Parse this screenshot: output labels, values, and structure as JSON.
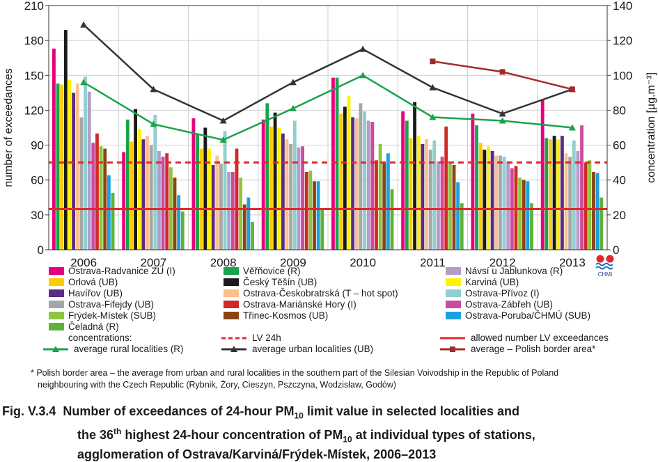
{
  "chart_data": {
    "type": "bar",
    "categories": [
      "2006",
      "2007",
      "2008",
      "2009",
      "2010",
      "2011",
      "2012",
      "2013"
    ],
    "ylabel_left": "number of exceedances",
    "ylabel_right": "concentration [µg.m⁻³]",
    "ylim_left": [
      0,
      210
    ],
    "yticks_left": [
      0,
      30,
      60,
      90,
      120,
      150,
      180,
      210
    ],
    "ylim_right": [
      0,
      140
    ],
    "yticks_right": [
      0,
      20,
      40,
      60,
      80,
      100,
      120,
      140
    ],
    "grid": true,
    "series": [
      {
        "name": "Ostrava-Radvanice ZÚ (I)",
        "color": "#e6007e",
        "values": [
          173,
          84,
          113,
          112,
          148,
          119,
          117,
          129
        ]
      },
      {
        "name": "Věřňovice (R)",
        "color": "#1aa34a",
        "values": [
          143,
          112,
          100,
          126,
          148,
          111,
          107,
          96
        ]
      },
      {
        "name": "Orlová (UB)",
        "color": "#ffcc00",
        "values": [
          142,
          93,
          87,
          106,
          117,
          96,
          92,
          95
        ]
      },
      {
        "name": "Český Těšín (UB)",
        "color": "#1a1a1a",
        "values": [
          189,
          121,
          105,
          118,
          123,
          127,
          86,
          98
        ]
      },
      {
        "name": "Karviná (UB)",
        "color": "#fff200",
        "values": [
          146,
          104,
          87,
          105,
          132,
          98,
          89,
          95
        ]
      },
      {
        "name": "Havířov (UB)",
        "color": "#5b2c83",
        "values": [
          135,
          95,
          73,
          100,
          114,
          91,
          85,
          98
        ]
      },
      {
        "name": "Ostrava-Českobratrská (T – hot spot)",
        "color": "#fbc08f",
        "values": [
          143,
          98,
          81,
          95,
          113,
          95,
          81,
          83
        ]
      },
      {
        "name": "Ostrava-Fifejdy (UB)",
        "color": "#a6a6a6",
        "values": [
          114,
          90,
          74,
          91,
          126,
          86,
          81,
          80
        ]
      },
      {
        "name": "Ostrava-Přívoz (I)",
        "color": "#8fd0cf",
        "values": [
          149,
          116,
          102,
          111,
          119,
          94,
          80,
          94
        ]
      },
      {
        "name": "Návsí u Jablunkova (R)",
        "color": "#b39ccb",
        "values": [
          136,
          85,
          67,
          88,
          111,
          76,
          76,
          85
        ]
      },
      {
        "name": "Ostrava-Zábřeh (UB)",
        "color": "#cc4b9e",
        "values": [
          92,
          80,
          67,
          89,
          110,
          80,
          70,
          107
        ]
      },
      {
        "name": "Ostrava-Mariánské Hory (I)",
        "color": "#d02a27",
        "values": [
          100,
          83,
          87,
          67,
          77,
          106,
          72,
          75
        ]
      },
      {
        "name": "Frýdek-Místek (SUB)",
        "color": "#8cc63f",
        "values": [
          89,
          71,
          62,
          68,
          91,
          76,
          62,
          77
        ]
      },
      {
        "name": "Třinec-Kosmos (UB)",
        "color": "#8b4513",
        "values": [
          87,
          62,
          39,
          59,
          75,
          73,
          60,
          67
        ]
      },
      {
        "name": "Ostrava-Poruba/ČHMÚ (SUB)",
        "color": "#1e9fdf",
        "values": [
          64,
          47,
          45,
          59,
          83,
          58,
          59,
          66
        ]
      },
      {
        "name": "Čeladná (R)",
        "color": "#5db33a",
        "values": [
          49,
          33,
          24,
          35,
          52,
          40,
          40,
          45
        ]
      }
    ],
    "lines": [
      {
        "name": "average rural localities (R)",
        "color": "#1aa34a",
        "marker": "triangle",
        "values": [
          96,
          72,
          63,
          81,
          100,
          76,
          74,
          70
        ]
      },
      {
        "name": "average urban localities (UB)",
        "color": "#333333",
        "marker": "triangle",
        "values": [
          129,
          92,
          74,
          96,
          115,
          93,
          78,
          92
        ]
      },
      {
        "name": "average – Polish border area*",
        "color": "#a52a2a",
        "marker": "square",
        "values": [
          null,
          null,
          null,
          null,
          null,
          108,
          102,
          92
        ]
      }
    ],
    "reference_lines": [
      {
        "name": "LV 24h",
        "color": "#e0282e",
        "style": "dashed",
        "value": 50,
        "axis": "right"
      },
      {
        "name": "allowed number LV exceedances",
        "color": "#e0282e",
        "style": "solid",
        "value": 35,
        "axis": "left"
      }
    ],
    "legend_concentrations_label": "concentrations:"
  },
  "logo": {
    "text": "CHMI"
  },
  "footnote": {
    "line1": "* Polish border area – the average from urban and rural localities in the southern part of the Silesian Voivodship in the Republic of Poland",
    "line2": "neighbouring with the Czech Republic (Rybnik, Żory, Cieszyn, Pszczyna, Wodzisław, Godów)"
  },
  "caption": {
    "prefix": "Fig. V.3.4",
    "line1_a": "Number of exceedances of 24-hour PM",
    "line1_sub": "10",
    "line1_b": " limit value in selected localities and",
    "line2_a": "the 36",
    "line2_sup": "th",
    "line2_b": " highest 24-hour concentration of PM",
    "line2_sub": "10",
    "line2_c": " at individual types of stations,",
    "line3": "agglomeration of Ostrava/Karviná/Frýdek-Místek, 2006–2013"
  }
}
